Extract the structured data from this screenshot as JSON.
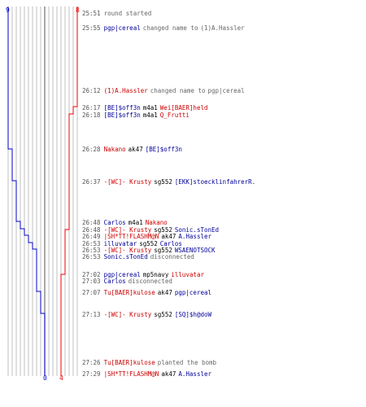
{
  "scores": {
    "blue_start": "9",
    "red_start": "8",
    "blue_end": "0",
    "red_end": "4"
  },
  "colors": {
    "blue": "#0000cc",
    "red": "#ee0000",
    "grid": "#b0b0b0",
    "grid_dark": "#707070"
  },
  "events": [
    {
      "time": "25:51",
      "parts": [
        {
          "text": "round started",
          "c": "gray"
        }
      ]
    },
    {
      "time": "25:55",
      "parts": [
        {
          "text": "pgp|cereal",
          "c": "blue"
        },
        {
          "text": "changed name to",
          "c": "gray"
        },
        {
          "text": "(1)A.Hassler",
          "c": "gray"
        }
      ]
    },
    {
      "time": "26:12",
      "parts": [
        {
          "text": "(1)A.Hassler",
          "c": "red"
        },
        {
          "text": "changed name to",
          "c": "gray"
        },
        {
          "text": "pgp|cereal",
          "c": "gray"
        }
      ]
    },
    {
      "time": "26:17",
      "parts": [
        {
          "text": "[BE]$off3n",
          "c": "blue"
        },
        {
          "text": "m4a1",
          "c": "black"
        },
        {
          "text": "Wei[BAER]held",
          "c": "red"
        }
      ]
    },
    {
      "time": "26:18",
      "parts": [
        {
          "text": "[BE]$off3n",
          "c": "blue"
        },
        {
          "text": "m4a1",
          "c": "black"
        },
        {
          "text": "Q_Frutti",
          "c": "red"
        }
      ]
    },
    {
      "time": "26:28",
      "parts": [
        {
          "text": "Nakano",
          "c": "red"
        },
        {
          "text": "ak47",
          "c": "black"
        },
        {
          "text": "[BE]$off3n",
          "c": "blue"
        }
      ]
    },
    {
      "time": "26:37",
      "parts": [
        {
          "text": "-[WC]- Krusty",
          "c": "red"
        },
        {
          "text": "sg552",
          "c": "black"
        },
        {
          "text": "[EKK]stoecklinfahrerR.",
          "c": "blue"
        }
      ]
    },
    {
      "time": "26:48",
      "parts": [
        {
          "text": "Carlos",
          "c": "blue"
        },
        {
          "text": "m4a1",
          "c": "black"
        },
        {
          "text": "Nakano",
          "c": "red"
        }
      ]
    },
    {
      "time": "26:48",
      "parts": [
        {
          "text": "-[WC]- Krusty",
          "c": "red"
        },
        {
          "text": "sg552",
          "c": "black"
        },
        {
          "text": "Sonic.sTonEd",
          "c": "blue"
        }
      ]
    },
    {
      "time": "26:49",
      "parts": [
        {
          "text": "|SH*TT!FLASHM@N",
          "c": "red"
        },
        {
          "text": "ak47",
          "c": "black"
        },
        {
          "text": "A.Hassler",
          "c": "blue"
        }
      ]
    },
    {
      "time": "26:53",
      "parts": [
        {
          "text": "illuvatar",
          "c": "blue"
        },
        {
          "text": "sg552",
          "c": "black"
        },
        {
          "text": "Carlos",
          "c": "blue"
        }
      ]
    },
    {
      "time": "26:53",
      "parts": [
        {
          "text": "-[WC]- Krusty",
          "c": "red"
        },
        {
          "text": "sg552",
          "c": "black"
        },
        {
          "text": "WSAENOTSOCK",
          "c": "blue"
        }
      ]
    },
    {
      "time": "26:53",
      "parts": [
        {
          "text": "Sonic.sTonEd",
          "c": "blue"
        },
        {
          "text": "disconnected",
          "c": "gray"
        }
      ]
    },
    {
      "time": "27:02",
      "parts": [
        {
          "text": "pgp|cereal",
          "c": "blue"
        },
        {
          "text": "mp5navy",
          "c": "black"
        },
        {
          "text": "illuvatar",
          "c": "red"
        }
      ]
    },
    {
      "time": "27:03",
      "parts": [
        {
          "text": "Carlos",
          "c": "blue"
        },
        {
          "text": "disconnected",
          "c": "gray"
        }
      ]
    },
    {
      "time": "27:07",
      "parts": [
        {
          "text": "Tu[BAER]kulose",
          "c": "red"
        },
        {
          "text": "ak47",
          "c": "black"
        },
        {
          "text": "pgp|cereal",
          "c": "blue"
        }
      ]
    },
    {
      "time": "27:13",
      "parts": [
        {
          "text": "-[WC]- Krusty",
          "c": "red"
        },
        {
          "text": "sg552",
          "c": "black"
        },
        {
          "text": "[SQ]$h@doW",
          "c": "blue"
        }
      ]
    },
    {
      "time": "27:26",
      "parts": [
        {
          "text": "Tu[BAER]kulose",
          "c": "red"
        },
        {
          "text": "planted the bomb",
          "c": "gray"
        }
      ]
    },
    {
      "time": "27:29",
      "parts": [
        {
          "text": "|SH*TT!FLASHM@N",
          "c": "red"
        },
        {
          "text": "ak47",
          "c": "black"
        },
        {
          "text": "A.Hassler",
          "c": "blue"
        }
      ]
    }
  ]
}
